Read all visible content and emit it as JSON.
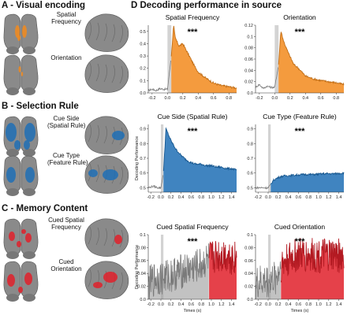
{
  "panelA": {
    "title": "A - Visual encoding",
    "labels": [
      "Spatial\nFrequency",
      "Orientation"
    ],
    "color": "#f28a1c"
  },
  "panelB": {
    "title": "B - Selection Rule",
    "labels": [
      "Cue Side\n(Spatial Rule)",
      "Cue Type\n(Feature Rule)"
    ],
    "color": "#1f6fb5"
  },
  "panelC": {
    "title": "C - Memory Content",
    "labels": [
      "Cued Spatial\nFrequency",
      "Cued\nOrientation"
    ],
    "color": "#e0202a"
  },
  "panelD": {
    "title": "D Decoding performance in source"
  },
  "chart_data": [
    {
      "type": "area",
      "title": "Spatial Frequency",
      "color": "#f28a1c",
      "xlim": [
        -0.25,
        0.9
      ],
      "ylim": [
        0,
        0.55
      ],
      "yticks": [
        0.0,
        0.1,
        0.2,
        0.3,
        0.4,
        0.5
      ],
      "xticks": [
        -0.2,
        0.0,
        0.2,
        0.4,
        0.6,
        0.8
      ],
      "xlabel": "",
      "ylabel": "",
      "cue_window": [
        0.0,
        0.05
      ],
      "significance": "***",
      "sig_start": 0.05,
      "curve": [
        [
          -0.25,
          0.02
        ],
        [
          -0.2,
          0.03
        ],
        [
          -0.15,
          0.02
        ],
        [
          -0.1,
          0.035
        ],
        [
          -0.05,
          0.03
        ],
        [
          0.0,
          0.03
        ],
        [
          0.05,
          0.3
        ],
        [
          0.08,
          0.55
        ],
        [
          0.1,
          0.45
        ],
        [
          0.15,
          0.38
        ],
        [
          0.2,
          0.4
        ],
        [
          0.25,
          0.34
        ],
        [
          0.3,
          0.28
        ],
        [
          0.35,
          0.22
        ],
        [
          0.4,
          0.17
        ],
        [
          0.5,
          0.12
        ],
        [
          0.6,
          0.08
        ],
        [
          0.7,
          0.06
        ],
        [
          0.8,
          0.05
        ],
        [
          0.9,
          0.04
        ]
      ]
    },
    {
      "type": "area",
      "title": "Orientation",
      "color": "#f28a1c",
      "xlim": [
        -0.25,
        0.9
      ],
      "ylim": [
        0,
        0.12
      ],
      "yticks": [
        0.0,
        0.02,
        0.04,
        0.06,
        0.08,
        0.1,
        0.12
      ],
      "xticks": [
        -0.2,
        0.0,
        0.2,
        0.4,
        0.6,
        0.8
      ],
      "xlabel": "",
      "ylabel": "",
      "cue_window": [
        0.0,
        0.05
      ],
      "significance": "***",
      "sig_start": 0.05,
      "curve": [
        [
          -0.25,
          0.01
        ],
        [
          -0.2,
          0.015
        ],
        [
          -0.15,
          0.008
        ],
        [
          -0.1,
          0.012
        ],
        [
          -0.05,
          0.01
        ],
        [
          0.0,
          0.01
        ],
        [
          0.05,
          0.05
        ],
        [
          0.08,
          0.11
        ],
        [
          0.12,
          0.09
        ],
        [
          0.18,
          0.07
        ],
        [
          0.25,
          0.05
        ],
        [
          0.3,
          0.045
        ],
        [
          0.4,
          0.03
        ],
        [
          0.5,
          0.025
        ],
        [
          0.6,
          0.022
        ],
        [
          0.7,
          0.02
        ],
        [
          0.8,
          0.018
        ],
        [
          0.9,
          0.015
        ]
      ]
    },
    {
      "type": "area",
      "title": "Cue Side (Spatial Rule)",
      "color": "#1f6fb5",
      "xlim": [
        -0.25,
        1.5
      ],
      "ylim": [
        0.47,
        0.93
      ],
      "yticks": [
        0.5,
        0.6,
        0.7,
        0.8,
        0.9
      ],
      "xticks": [
        -0.2,
        0.0,
        0.2,
        0.4,
        0.6,
        0.8,
        1.0,
        1.2,
        1.4
      ],
      "xlabel": "",
      "ylabel": "Decoding Performance",
      "cue_window": [
        0.0,
        0.05
      ],
      "significance": "***",
      "sig_start": 0.05,
      "curve": [
        [
          -0.25,
          0.5
        ],
        [
          -0.15,
          0.51
        ],
        [
          -0.05,
          0.5
        ],
        [
          0.0,
          0.5
        ],
        [
          0.05,
          0.6
        ],
        [
          0.1,
          0.9
        ],
        [
          0.15,
          0.86
        ],
        [
          0.2,
          0.82
        ],
        [
          0.3,
          0.76
        ],
        [
          0.4,
          0.72
        ],
        [
          0.5,
          0.69
        ],
        [
          0.6,
          0.67
        ],
        [
          0.7,
          0.66
        ],
        [
          0.8,
          0.66
        ],
        [
          0.9,
          0.65
        ],
        [
          1.0,
          0.65
        ],
        [
          1.1,
          0.64
        ],
        [
          1.2,
          0.64
        ],
        [
          1.3,
          0.63
        ],
        [
          1.4,
          0.63
        ],
        [
          1.5,
          0.62
        ]
      ]
    },
    {
      "type": "area",
      "title": "Cue Type (Feature Rule)",
      "color": "#1f6fb5",
      "xlim": [
        -0.25,
        1.5
      ],
      "ylim": [
        0.47,
        0.93
      ],
      "yticks": [
        0.5,
        0.6,
        0.7,
        0.8,
        0.9
      ],
      "xticks": [
        -0.2,
        0.0,
        0.2,
        0.4,
        0.6,
        0.8,
        1.0,
        1.2,
        1.4
      ],
      "xlabel": "",
      "ylabel": "",
      "cue_window": [
        0.0,
        0.05
      ],
      "significance": "***",
      "sig_start": 0.05,
      "curve": [
        [
          -0.25,
          0.5
        ],
        [
          -0.15,
          0.5
        ],
        [
          -0.05,
          0.5
        ],
        [
          0.0,
          0.5
        ],
        [
          0.05,
          0.52
        ],
        [
          0.1,
          0.55
        ],
        [
          0.2,
          0.57
        ],
        [
          0.3,
          0.58
        ],
        [
          0.5,
          0.585
        ],
        [
          0.7,
          0.59
        ],
        [
          0.9,
          0.59
        ],
        [
          1.1,
          0.595
        ],
        [
          1.3,
          0.595
        ],
        [
          1.5,
          0.6
        ]
      ]
    },
    {
      "type": "area",
      "title": "Cued Spatial Frequency",
      "color": "#e0202a",
      "xlim": [
        -0.25,
        1.5
      ],
      "ylim": [
        0,
        0.1
      ],
      "yticks": [
        0.0,
        0.02,
        0.04,
        0.06,
        0.08,
        0.1
      ],
      "xticks": [
        -0.2,
        0.0,
        0.2,
        0.4,
        0.6,
        0.8,
        1.0,
        1.2,
        1.4
      ],
      "xlabel": "Times (s)",
      "ylabel": "Decoding Performance",
      "cue_window": [
        0.0,
        0.05
      ],
      "significance": "***",
      "sig_start": 0.95,
      "curve": [
        [
          -0.25,
          0.02
        ],
        [
          -0.1,
          0.03
        ],
        [
          0.0,
          0.03
        ],
        [
          0.2,
          0.035
        ],
        [
          0.4,
          0.04
        ],
        [
          0.6,
          0.045
        ],
        [
          0.8,
          0.05
        ],
        [
          0.95,
          0.06
        ],
        [
          1.1,
          0.065
        ],
        [
          1.3,
          0.065
        ],
        [
          1.5,
          0.06
        ]
      ]
    },
    {
      "type": "area",
      "title": "Cued Orientation",
      "color": "#e0202a",
      "xlim": [
        -0.25,
        1.5
      ],
      "ylim": [
        0,
        0.1
      ],
      "yticks": [
        0.0,
        0.02,
        0.04,
        0.06,
        0.08,
        0.1
      ],
      "xticks": [
        -0.2,
        0.0,
        0.2,
        0.4,
        0.6,
        0.8,
        1.0,
        1.2,
        1.4
      ],
      "xlabel": "Times (s)",
      "ylabel": "",
      "cue_window": [
        0.0,
        0.05
      ],
      "significance": "***",
      "sig_start": 0.25,
      "curve": [
        [
          -0.25,
          0.02
        ],
        [
          -0.1,
          0.025
        ],
        [
          0.0,
          0.025
        ],
        [
          0.15,
          0.03
        ],
        [
          0.25,
          0.05
        ],
        [
          0.4,
          0.06
        ],
        [
          0.6,
          0.065
        ],
        [
          0.8,
          0.065
        ],
        [
          1.0,
          0.065
        ],
        [
          1.2,
          0.065
        ],
        [
          1.5,
          0.065
        ]
      ]
    }
  ]
}
